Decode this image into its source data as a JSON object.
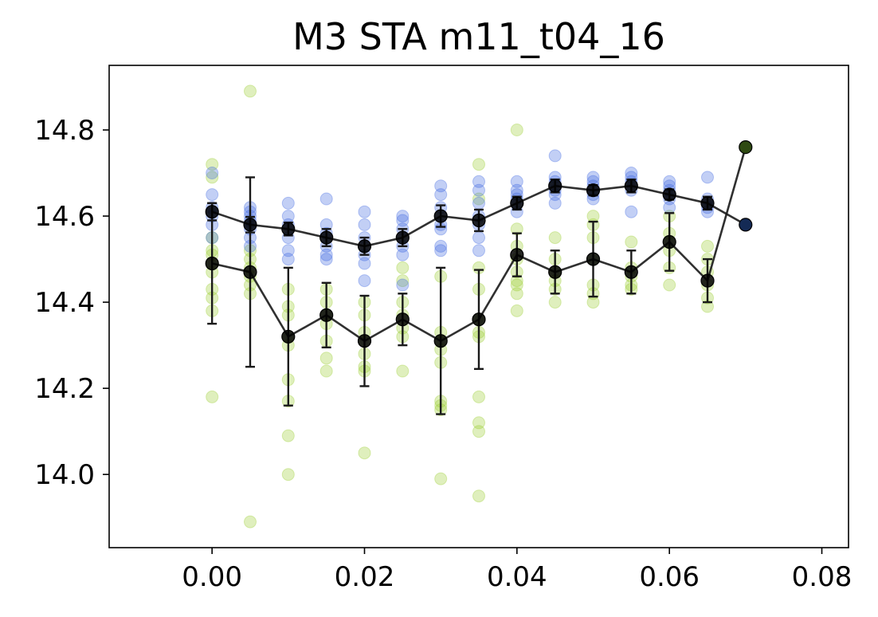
{
  "chart_data": {
    "type": "scatter",
    "title": "M3 STA m11_t04_16",
    "xlabel": "",
    "ylabel": "",
    "xlim": [
      -0.0135,
      0.0835
    ],
    "ylim": [
      13.83,
      14.95
    ],
    "xticks": [
      0.0,
      0.02,
      0.04,
      0.06,
      0.08
    ],
    "xtick_labels": [
      "0.00",
      "0.02",
      "0.04",
      "0.06",
      "0.08"
    ],
    "yticks": [
      14.0,
      14.2,
      14.4,
      14.6,
      14.8
    ],
    "ytick_labels": [
      "14.0",
      "14.2",
      "14.4",
      "14.6",
      "14.8"
    ],
    "grid": false,
    "colors": {
      "green_points": "#9acd32",
      "blue_points": "#4169e1",
      "mean_line": "#1a1a1a",
      "mean_marker": "#000000",
      "green_mean_fill": "#2f4a12",
      "blue_mean_fill": "#142a55"
    },
    "series": [
      {
        "color_key": "green",
        "points": [
          [
            0.0,
            14.72
          ],
          [
            0.0,
            14.69
          ],
          [
            0.0,
            14.55
          ],
          [
            0.0,
            14.52
          ],
          [
            0.0,
            14.51
          ],
          [
            0.0,
            14.49
          ],
          [
            0.0,
            14.47
          ],
          [
            0.0,
            14.43
          ],
          [
            0.0,
            14.41
          ],
          [
            0.0,
            14.38
          ],
          [
            0.0,
            14.18
          ],
          [
            0.005,
            14.89
          ],
          [
            0.005,
            14.52
          ],
          [
            0.005,
            14.5
          ],
          [
            0.005,
            14.48
          ],
          [
            0.005,
            14.46
          ],
          [
            0.005,
            14.44
          ],
          [
            0.005,
            14.42
          ],
          [
            0.005,
            13.89
          ],
          [
            0.01,
            14.43
          ],
          [
            0.01,
            14.39
          ],
          [
            0.01,
            14.37
          ],
          [
            0.01,
            14.32
          ],
          [
            0.01,
            14.3
          ],
          [
            0.01,
            14.22
          ],
          [
            0.01,
            14.17
          ],
          [
            0.01,
            14.09
          ],
          [
            0.01,
            14.0
          ],
          [
            0.015,
            14.43
          ],
          [
            0.015,
            14.4
          ],
          [
            0.015,
            14.37
          ],
          [
            0.015,
            14.35
          ],
          [
            0.015,
            14.31
          ],
          [
            0.015,
            14.27
          ],
          [
            0.015,
            14.24
          ],
          [
            0.02,
            14.4
          ],
          [
            0.02,
            14.37
          ],
          [
            0.02,
            14.33
          ],
          [
            0.02,
            14.31
          ],
          [
            0.02,
            14.28
          ],
          [
            0.02,
            14.25
          ],
          [
            0.02,
            14.24
          ],
          [
            0.02,
            14.05
          ],
          [
            0.025,
            14.48
          ],
          [
            0.025,
            14.45
          ],
          [
            0.025,
            14.4
          ],
          [
            0.025,
            14.37
          ],
          [
            0.025,
            14.34
          ],
          [
            0.025,
            14.32
          ],
          [
            0.025,
            14.24
          ],
          [
            0.03,
            14.46
          ],
          [
            0.03,
            14.33
          ],
          [
            0.03,
            14.31
          ],
          [
            0.03,
            14.29
          ],
          [
            0.03,
            14.26
          ],
          [
            0.03,
            14.17
          ],
          [
            0.03,
            14.16
          ],
          [
            0.03,
            14.15
          ],
          [
            0.03,
            13.99
          ],
          [
            0.035,
            14.72
          ],
          [
            0.035,
            14.64
          ],
          [
            0.035,
            14.48
          ],
          [
            0.035,
            14.43
          ],
          [
            0.035,
            14.36
          ],
          [
            0.035,
            14.33
          ],
          [
            0.035,
            14.32
          ],
          [
            0.035,
            14.18
          ],
          [
            0.035,
            14.12
          ],
          [
            0.035,
            14.1
          ],
          [
            0.035,
            13.95
          ],
          [
            0.04,
            14.8
          ],
          [
            0.04,
            14.57
          ],
          [
            0.04,
            14.53
          ],
          [
            0.04,
            14.5
          ],
          [
            0.04,
            14.47
          ],
          [
            0.04,
            14.45
          ],
          [
            0.04,
            14.44
          ],
          [
            0.04,
            14.42
          ],
          [
            0.04,
            14.38
          ],
          [
            0.045,
            14.55
          ],
          [
            0.045,
            14.5
          ],
          [
            0.045,
            14.47
          ],
          [
            0.045,
            14.45
          ],
          [
            0.045,
            14.43
          ],
          [
            0.045,
            14.4
          ],
          [
            0.05,
            14.6
          ],
          [
            0.05,
            14.58
          ],
          [
            0.05,
            14.55
          ],
          [
            0.05,
            14.5
          ],
          [
            0.05,
            14.44
          ],
          [
            0.05,
            14.42
          ],
          [
            0.05,
            14.4
          ],
          [
            0.055,
            14.54
          ],
          [
            0.055,
            14.48
          ],
          [
            0.055,
            14.46
          ],
          [
            0.055,
            14.44
          ],
          [
            0.055,
            14.43
          ],
          [
            0.06,
            14.6
          ],
          [
            0.06,
            14.56
          ],
          [
            0.06,
            14.54
          ],
          [
            0.06,
            14.52
          ],
          [
            0.06,
            14.48
          ],
          [
            0.06,
            14.44
          ],
          [
            0.065,
            14.53
          ],
          [
            0.065,
            14.5
          ],
          [
            0.065,
            14.47
          ],
          [
            0.065,
            14.44
          ],
          [
            0.065,
            14.41
          ],
          [
            0.065,
            14.39
          ],
          [
            0.07,
            14.76
          ]
        ],
        "mean": {
          "x": [
            0.0,
            0.005,
            0.01,
            0.015,
            0.02,
            0.025,
            0.03,
            0.035,
            0.04,
            0.045,
            0.05,
            0.055,
            0.06,
            0.065,
            0.07
          ],
          "y": [
            14.49,
            14.47,
            14.32,
            14.37,
            14.31,
            14.36,
            14.31,
            14.36,
            14.51,
            14.47,
            14.5,
            14.47,
            14.54,
            14.45,
            14.76
          ],
          "err": [
            0.14,
            0.22,
            0.16,
            0.075,
            0.105,
            0.06,
            0.17,
            0.115,
            0.05,
            0.05,
            0.087,
            0.05,
            0.067,
            0.05,
            0.0
          ]
        }
      },
      {
        "color_key": "blue",
        "points": [
          [
            0.0,
            14.7
          ],
          [
            0.0,
            14.65
          ],
          [
            0.0,
            14.62
          ],
          [
            0.0,
            14.61
          ],
          [
            0.0,
            14.6
          ],
          [
            0.0,
            14.58
          ],
          [
            0.0,
            14.55
          ],
          [
            0.005,
            14.62
          ],
          [
            0.005,
            14.61
          ],
          [
            0.005,
            14.6
          ],
          [
            0.005,
            14.59
          ],
          [
            0.005,
            14.58
          ],
          [
            0.005,
            14.57
          ],
          [
            0.005,
            14.55
          ],
          [
            0.005,
            14.53
          ],
          [
            0.01,
            14.63
          ],
          [
            0.01,
            14.6
          ],
          [
            0.01,
            14.58
          ],
          [
            0.01,
            14.57
          ],
          [
            0.01,
            14.55
          ],
          [
            0.01,
            14.52
          ],
          [
            0.01,
            14.5
          ],
          [
            0.015,
            14.64
          ],
          [
            0.015,
            14.58
          ],
          [
            0.015,
            14.56
          ],
          [
            0.015,
            14.55
          ],
          [
            0.015,
            14.53
          ],
          [
            0.015,
            14.51
          ],
          [
            0.015,
            14.5
          ],
          [
            0.02,
            14.61
          ],
          [
            0.02,
            14.58
          ],
          [
            0.02,
            14.55
          ],
          [
            0.02,
            14.53
          ],
          [
            0.02,
            14.51
          ],
          [
            0.02,
            14.49
          ],
          [
            0.02,
            14.45
          ],
          [
            0.025,
            14.6
          ],
          [
            0.025,
            14.59
          ],
          [
            0.025,
            14.57
          ],
          [
            0.025,
            14.55
          ],
          [
            0.025,
            14.53
          ],
          [
            0.025,
            14.51
          ],
          [
            0.025,
            14.44
          ],
          [
            0.03,
            14.67
          ],
          [
            0.03,
            14.65
          ],
          [
            0.03,
            14.62
          ],
          [
            0.03,
            14.6
          ],
          [
            0.03,
            14.58
          ],
          [
            0.03,
            14.57
          ],
          [
            0.03,
            14.53
          ],
          [
            0.03,
            14.52
          ],
          [
            0.035,
            14.68
          ],
          [
            0.035,
            14.66
          ],
          [
            0.035,
            14.63
          ],
          [
            0.035,
            14.6
          ],
          [
            0.035,
            14.58
          ],
          [
            0.035,
            14.55
          ],
          [
            0.035,
            14.52
          ],
          [
            0.04,
            14.68
          ],
          [
            0.04,
            14.66
          ],
          [
            0.04,
            14.65
          ],
          [
            0.04,
            14.64
          ],
          [
            0.04,
            14.63
          ],
          [
            0.04,
            14.61
          ],
          [
            0.045,
            14.74
          ],
          [
            0.045,
            14.69
          ],
          [
            0.045,
            14.68
          ],
          [
            0.045,
            14.67
          ],
          [
            0.045,
            14.66
          ],
          [
            0.045,
            14.65
          ],
          [
            0.045,
            14.63
          ],
          [
            0.05,
            14.69
          ],
          [
            0.05,
            14.68
          ],
          [
            0.05,
            14.67
          ],
          [
            0.05,
            14.66
          ],
          [
            0.05,
            14.65
          ],
          [
            0.05,
            14.64
          ],
          [
            0.055,
            14.7
          ],
          [
            0.055,
            14.69
          ],
          [
            0.055,
            14.68
          ],
          [
            0.055,
            14.67
          ],
          [
            0.055,
            14.66
          ],
          [
            0.055,
            14.61
          ],
          [
            0.06,
            14.68
          ],
          [
            0.06,
            14.67
          ],
          [
            0.06,
            14.66
          ],
          [
            0.06,
            14.65
          ],
          [
            0.06,
            14.64
          ],
          [
            0.06,
            14.62
          ],
          [
            0.065,
            14.69
          ],
          [
            0.065,
            14.64
          ],
          [
            0.065,
            14.63
          ],
          [
            0.065,
            14.62
          ],
          [
            0.065,
            14.61
          ],
          [
            0.07,
            14.58
          ]
        ],
        "mean": {
          "x": [
            0.0,
            0.005,
            0.01,
            0.015,
            0.02,
            0.025,
            0.03,
            0.035,
            0.04,
            0.045,
            0.05,
            0.055,
            0.06,
            0.065,
            0.07
          ],
          "y": [
            14.61,
            14.58,
            14.57,
            14.55,
            14.53,
            14.55,
            14.6,
            14.59,
            14.63,
            14.67,
            14.66,
            14.67,
            14.65,
            14.63,
            14.58
          ],
          "err": [
            0.02,
            0.018,
            0.015,
            0.02,
            0.02,
            0.02,
            0.025,
            0.025,
            0.015,
            0.015,
            0.012,
            0.015,
            0.012,
            0.015,
            0.0
          ]
        }
      }
    ]
  }
}
